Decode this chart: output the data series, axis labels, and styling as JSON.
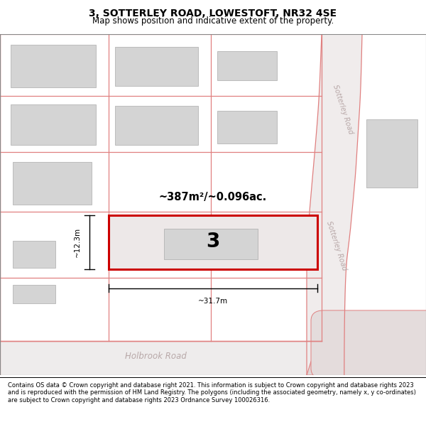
{
  "title_line1": "3, SOTTERLEY ROAD, LOWESTOFT, NR32 4SE",
  "title_line2": "Map shows position and indicative extent of the property.",
  "footer_text": "Contains OS data © Crown copyright and database right 2021. This information is subject to Crown copyright and database rights 2023 and is reproduced with the permission of HM Land Registry. The polygons (including the associated geometry, namely x, y co-ordinates) are subject to Crown copyright and database rights 2023 Ordnance Survey 100026316.",
  "road_label_sotterley_top": "Sotterley Road",
  "road_label_sotterley_bottom": "Sotterley Road",
  "road_label_holbrook": "Holbrook Road",
  "area_label": "~387m²/~0.096ac.",
  "plot_number": "3",
  "dim_width": "~31.7m",
  "dim_height": "~12.3m",
  "highlight_color": "#cc0000",
  "road_line_color": "#e08080",
  "building_fill": "#d4d4d4",
  "road_text_color": "#b8a8a8",
  "map_bg": "#eeecec",
  "title_fontsize": 10,
  "subtitle_fontsize": 8.5,
  "footer_fontsize": 6.0
}
